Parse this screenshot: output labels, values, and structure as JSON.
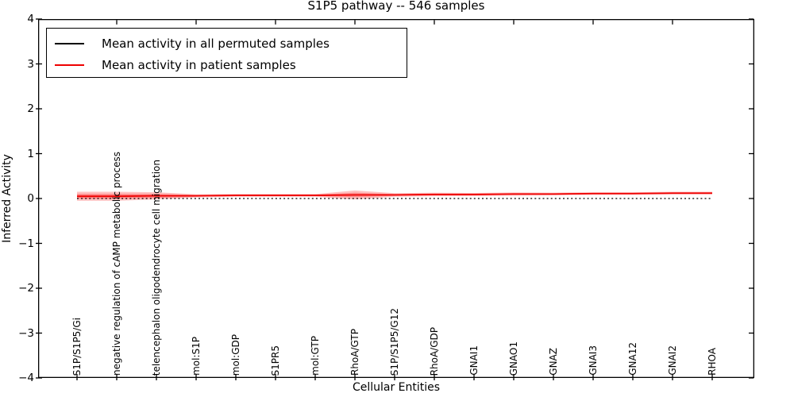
{
  "chart_data": {
    "type": "line",
    "title": "S1P5 pathway -- 546 samples",
    "xlabel": "Cellular Entities",
    "ylabel": "Inferred Activity",
    "ylim": [
      -4,
      4
    ],
    "ytick_values": [
      4,
      3,
      2,
      1,
      0,
      -1,
      -2,
      -3,
      -4
    ],
    "ytick_labels": [
      "4",
      "3",
      "2",
      "1",
      "0",
      "−1",
      "−2",
      "−3",
      "−4"
    ],
    "grid": false,
    "legend_position": "upper left",
    "categories": [
      "S1P/S1P5/Gi",
      "negative regulation of cAMP metabolic process",
      "telencephalon oligodendrocyte cell migration",
      "mol:S1P",
      "mol:GDP",
      "S1PR5",
      "mol:GTP",
      "RhoA/GTP",
      "S1P/S1P5/G12",
      "RhoA/GDP",
      "GNAI1",
      "GNAO1",
      "GNAZ",
      "GNAI3",
      "GNA12",
      "GNAI2",
      "RHOA"
    ],
    "series": [
      {
        "name": "Mean activity in all permuted samples",
        "color": "#000000",
        "line_style": "dotted",
        "values": [
          0,
          0,
          0,
          0,
          0,
          0,
          0,
          0,
          0,
          0,
          0,
          0,
          0,
          0,
          0,
          0,
          0
        ]
      },
      {
        "name": "Mean activity in patient samples",
        "color": "#ee0000",
        "line_style": "solid",
        "values": [
          0.05,
          0.05,
          0.06,
          0.06,
          0.07,
          0.07,
          0.07,
          0.08,
          0.08,
          0.09,
          0.09,
          0.1,
          0.1,
          0.11,
          0.11,
          0.12,
          0.12
        ]
      }
    ],
    "uncertainty_band": {
      "series": "Mean activity in patient samples",
      "fill_color": "#ff0000",
      "outer_alpha": 0.24,
      "inner_alpha": 0.28,
      "outer_halfwidth": [
        0.1,
        0.1,
        0.08,
        0.035,
        0.03,
        0.03,
        0.03,
        0.1,
        0.04,
        0.04,
        0.035,
        0.035,
        0.03,
        0.03,
        0.03,
        0.03,
        0.03
      ],
      "inner_halfwidth": [
        0.055,
        0.055,
        0.045,
        0.02,
        0.015,
        0.015,
        0.015,
        0.05,
        0.02,
        0.02,
        0.018,
        0.018,
        0.015,
        0.015,
        0.015,
        0.015,
        0.015
      ]
    },
    "top_ticks_at_category_index": [
      1,
      3,
      5,
      7,
      9,
      11,
      13,
      15
    ]
  }
}
